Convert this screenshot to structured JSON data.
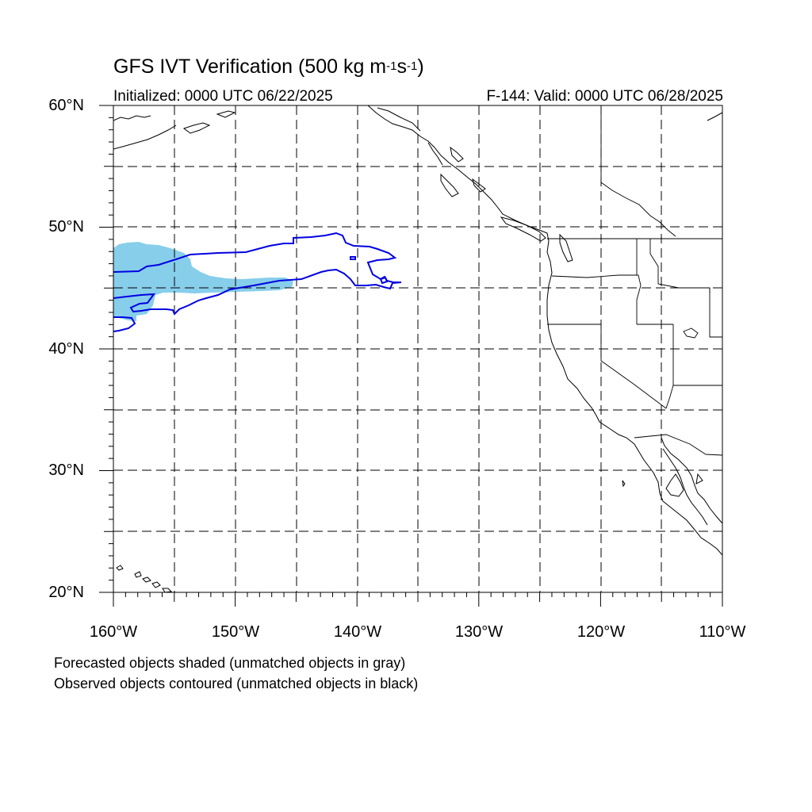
{
  "header": {
    "title_main": "GFS IVT Verification (500 kg m",
    "title_exp1": "-1",
    "title_mid": "s",
    "title_exp2": "-1",
    "title_end": ")",
    "initialized": "Initialized: 0000 UTC 06/22/2025",
    "valid": "F-144: Valid: 0000 UTC 06/28/2025"
  },
  "map": {
    "projection": "cylindrical equidistant",
    "lon_range": [
      -160,
      -110
    ],
    "lat_range": [
      20,
      60
    ],
    "grid_lines": "dashed",
    "lat_labels": [
      "60°N",
      "50°N",
      "40°N",
      "30°N",
      "20°N"
    ],
    "lon_labels": [
      "160°W",
      "150°W",
      "140°W",
      "130°W",
      "120°W",
      "110°W"
    ],
    "colors": {
      "forecast_fill": "#87ceeb",
      "observed_contour": "#0000e0",
      "coastline": "#000000",
      "grid": "#000000"
    }
  },
  "footer": {
    "line1": "Forecasted objects shaded (unmatched objects in gray)",
    "line2": "Observed objects contoured (unmatched objects in black)"
  }
}
